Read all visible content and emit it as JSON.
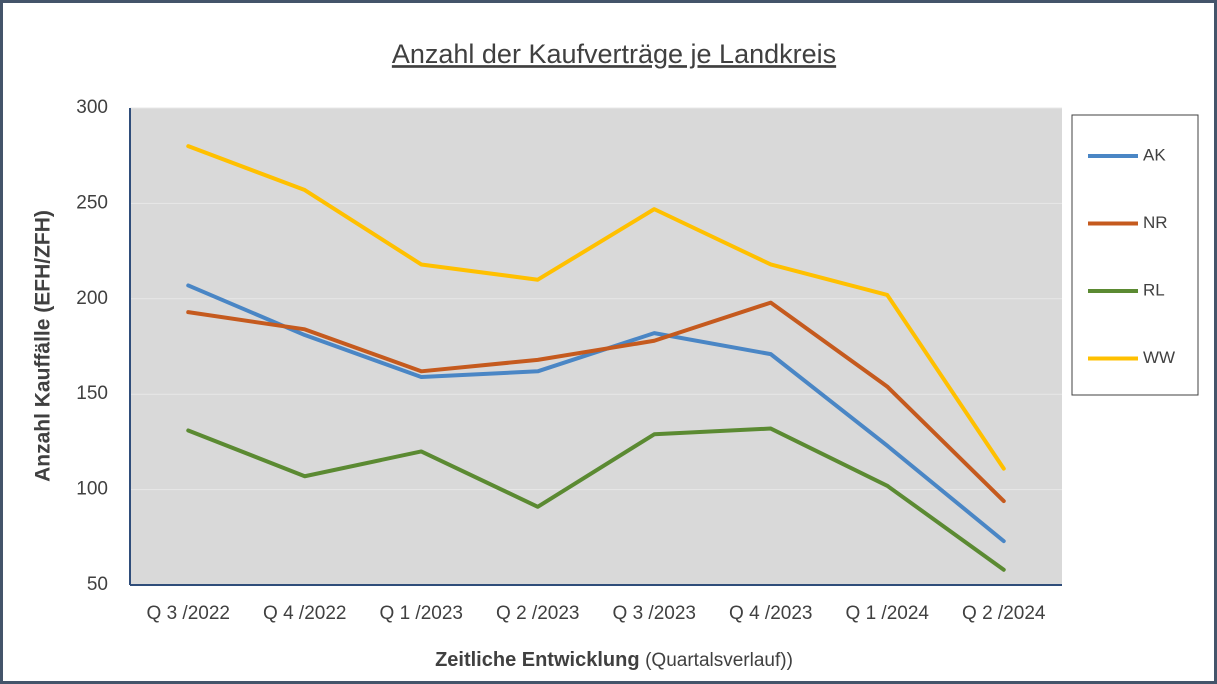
{
  "chart_data": {
    "type": "line",
    "title": "Anzahl der Kaufverträge je Landkreis",
    "ylabel": "Anzahl Kauffälle (EFH/ZFH)",
    "xlabel": "Zeitliche Entwicklung",
    "xlabel_note": "(Quartalsverlauf))",
    "categories": [
      "Q 3 /2022",
      "Q 4 /2022",
      "Q 1 /2023",
      "Q 2 /2023",
      "Q 3 /2023",
      "Q 4 /2023",
      "Q 1 /2024",
      "Q 2 /2024"
    ],
    "series": [
      {
        "name": "AK",
        "color": "#4a86c5",
        "values": [
          207,
          181,
          159,
          162,
          182,
          171,
          123,
          73
        ]
      },
      {
        "name": "NR",
        "color": "#c55a1e",
        "values": [
          193,
          184,
          162,
          168,
          178,
          198,
          154,
          94
        ]
      },
      {
        "name": "RL",
        "color": "#5b8a32",
        "values": [
          131,
          107,
          120,
          91,
          129,
          132,
          102,
          58
        ]
      },
      {
        "name": "WW",
        "color": "#ffc000",
        "values": [
          280,
          257,
          218,
          210,
          247,
          218,
          202,
          111
        ]
      }
    ],
    "ylim": [
      50,
      300
    ],
    "yticks": [
      50,
      100,
      150,
      200,
      250,
      300
    ],
    "grid": true,
    "legend": "right"
  }
}
